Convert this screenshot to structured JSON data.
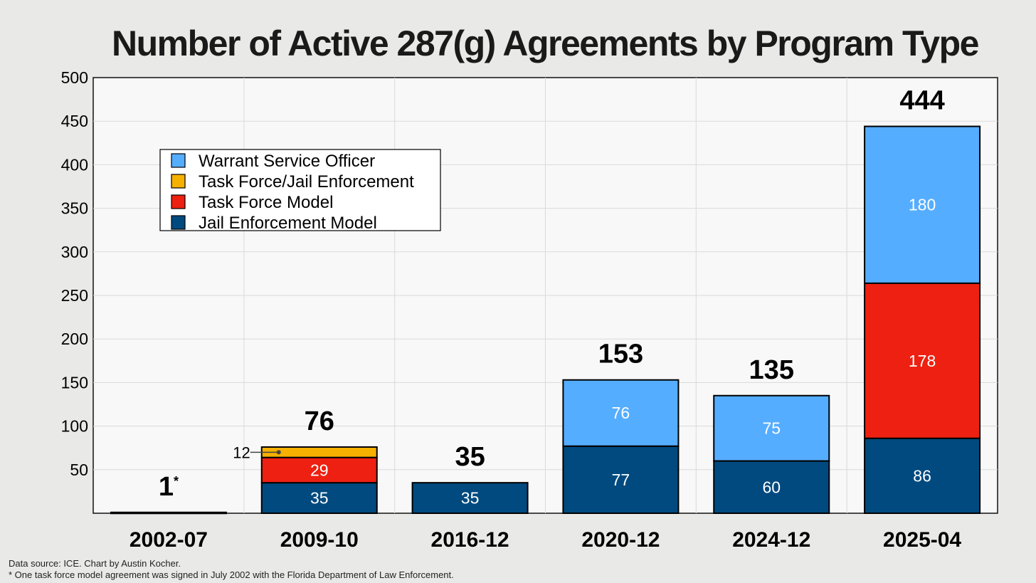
{
  "chart_data": {
    "type": "bar",
    "stacked": true,
    "title": "Number of Active 287(g) Agreements by Program Type",
    "categories": [
      "2002-07",
      "2009-10",
      "2016-12",
      "2020-12",
      "2024-12",
      "2025-04"
    ],
    "ylim": [
      0,
      500
    ],
    "yticks": [
      50,
      100,
      150,
      200,
      250,
      300,
      350,
      400,
      450,
      500
    ],
    "grid": true,
    "legend_position": "upper-left",
    "legend_order": [
      "Warrant Service Officer",
      "Task Force/Jail Enforcement",
      "Task Force Model",
      "Jail Enforcement Model"
    ],
    "series": [
      {
        "name": "Jail Enforcement Model",
        "color": "#004a7f",
        "values": [
          0,
          35,
          35,
          77,
          60,
          86
        ],
        "labels": [
          "",
          "35",
          "35",
          "77",
          "60",
          "86"
        ]
      },
      {
        "name": "Task Force Model",
        "color": "#ee2011",
        "values": [
          1,
          29,
          0,
          0,
          0,
          178
        ],
        "labels": [
          "",
          "29",
          "",
          "",
          "",
          "178"
        ]
      },
      {
        "name": "Task Force/Jail Enforcement",
        "color": "#f5b000",
        "values": [
          0,
          12,
          0,
          0,
          0,
          0
        ],
        "labels": [
          "",
          "",
          "",
          "",
          "",
          ""
        ]
      },
      {
        "name": "Warrant Service Officer",
        "color": "#55adff",
        "values": [
          0,
          0,
          0,
          76,
          75,
          180
        ],
        "labels": [
          "",
          "",
          "",
          "76",
          "75",
          "180"
        ]
      }
    ],
    "totals": [
      "1",
      "76",
      "35",
      "153",
      "135",
      "444"
    ],
    "total_marker": "*",
    "callout": {
      "category": "2009-10",
      "series": "Task Force/Jail Enforcement",
      "text": "12"
    }
  },
  "footnotes": {
    "source": "Data source: ICE. Chart by Austin Kocher.",
    "note": "* One task force model agreement was signed in July 2002 with the Florida Department of Law Enforcement."
  }
}
